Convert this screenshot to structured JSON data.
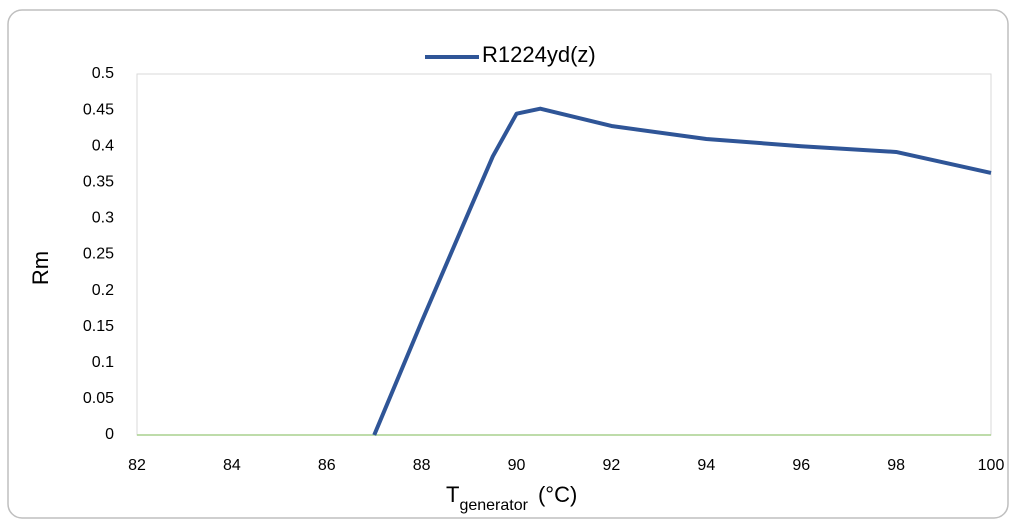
{
  "chart_data": {
    "type": "line",
    "x_label": "T",
    "x_label_subscript": "generator",
    "x_label_unit": "(°C)",
    "y_label": "Rm",
    "x": [
      87,
      88,
      89,
      89.5,
      90,
      90.5,
      92,
      94,
      96,
      98,
      100
    ],
    "series": [
      {
        "name": "R1224yd(z)",
        "color": "#2f5597",
        "values": [
          0,
          0.157,
          0.31,
          0.386,
          0.445,
          0.452,
          0.428,
          0.41,
          0.4,
          0.392,
          0.363
        ]
      }
    ],
    "xlim": [
      82,
      100
    ],
    "xticks": [
      82,
      84,
      86,
      88,
      90,
      92,
      94,
      96,
      98,
      100
    ],
    "ylim": [
      0,
      0.5
    ],
    "yticks": [
      0,
      0.05,
      0.1,
      0.15,
      0.2,
      0.25,
      0.3,
      0.35,
      0.4,
      0.45,
      0.5
    ],
    "legend": "top"
  }
}
